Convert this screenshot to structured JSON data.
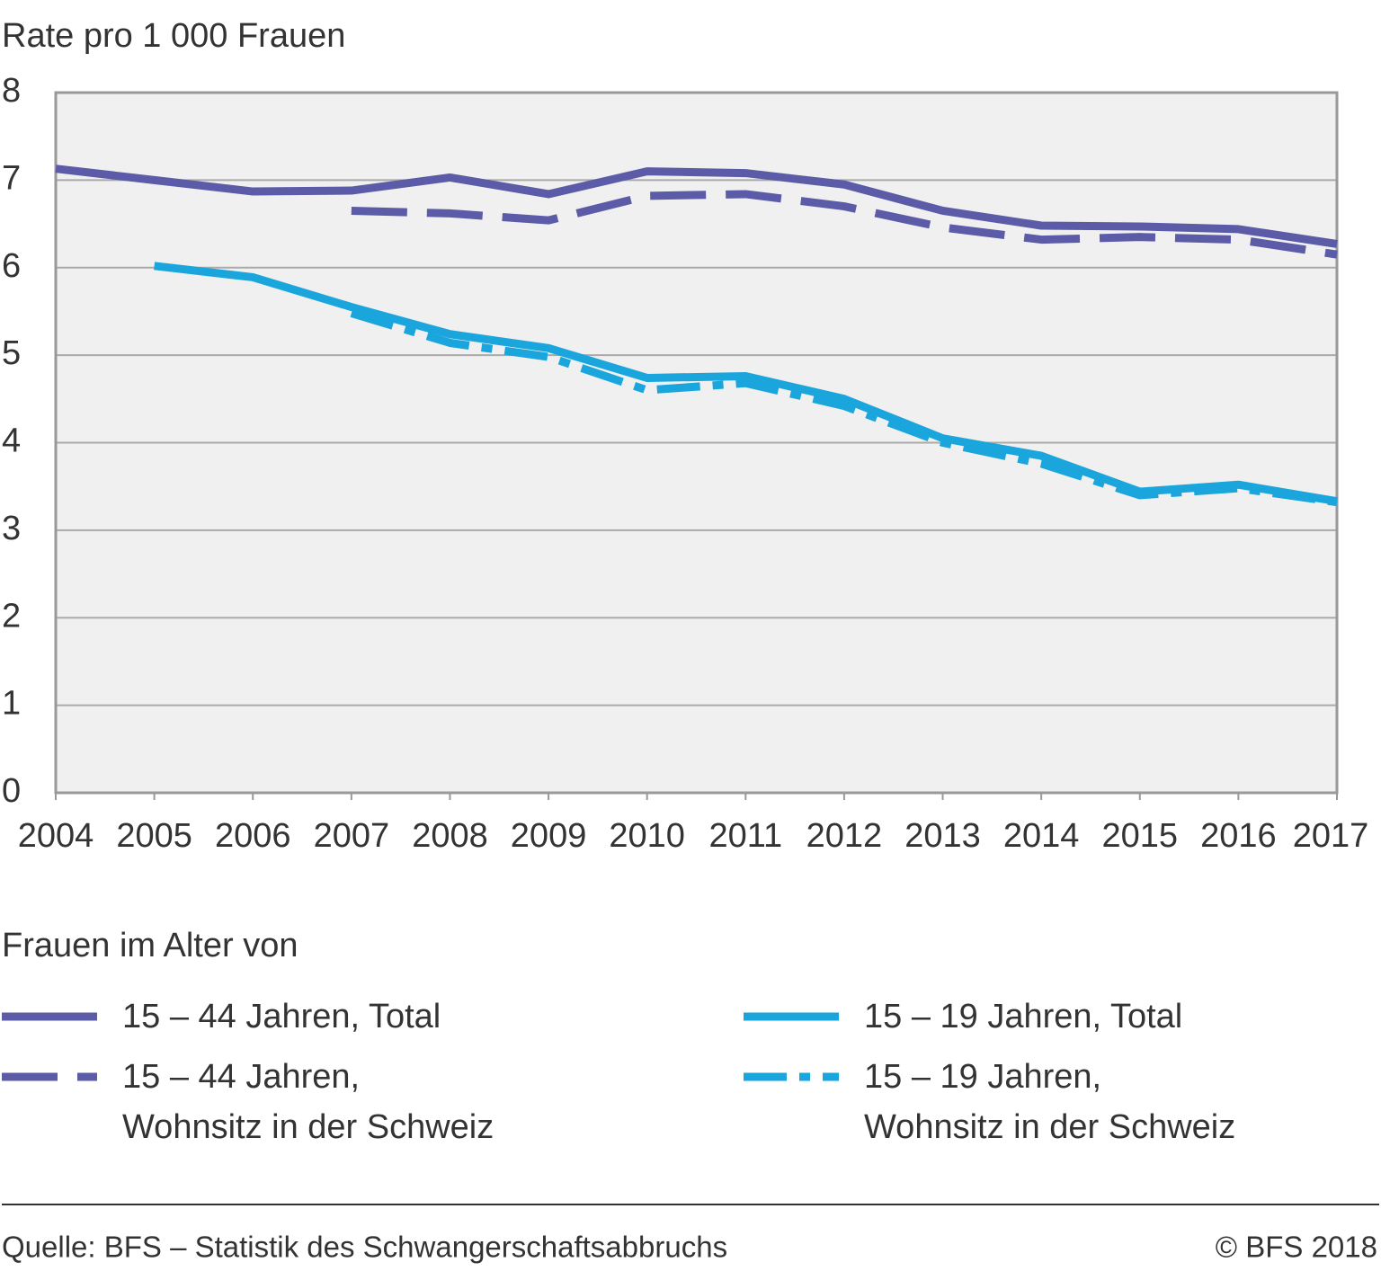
{
  "chart_data": {
    "type": "line",
    "title": "Rate pro 1 000 Frauen",
    "categories": [
      "2004",
      "2005",
      "2006",
      "2007",
      "2008",
      "2009",
      "2010",
      "2011",
      "2012",
      "2013",
      "2014",
      "2015",
      "2016",
      "2017"
    ],
    "series": [
      {
        "name": "15 – 44 Jahren, Total",
        "color": "#5b5ba8",
        "dash": "solid",
        "values": [
          7.13,
          7.0,
          6.87,
          6.88,
          7.03,
          6.84,
          7.1,
          7.08,
          6.95,
          6.65,
          6.48,
          6.47,
          6.44,
          6.27
        ]
      },
      {
        "name": "15 – 44 Jahren,\nWohnsitz in der Schweiz",
        "color": "#5b5ba8",
        "dash": "dashed",
        "values": [
          null,
          null,
          null,
          6.65,
          6.62,
          6.54,
          6.82,
          6.84,
          6.7,
          6.46,
          6.32,
          6.35,
          6.32,
          6.15
        ]
      },
      {
        "name": "15 – 19 Jahren, Total",
        "color": "#1aa6dc",
        "dash": "solid",
        "values": [
          null,
          6.02,
          5.89,
          5.55,
          5.24,
          5.08,
          4.74,
          4.76,
          4.5,
          4.05,
          3.85,
          3.44,
          3.52,
          3.33
        ]
      },
      {
        "name": "15 – 19 Jahren,\nWohnsitz in der Schweiz",
        "color": "#1aa6dc",
        "dash": "dashdot",
        "values": [
          null,
          null,
          null,
          5.48,
          5.14,
          4.98,
          4.6,
          4.68,
          4.42,
          4.0,
          3.76,
          3.4,
          3.48,
          3.32
        ]
      }
    ],
    "ylim": [
      0,
      8
    ],
    "yticks": [
      0,
      1,
      2,
      3,
      4,
      5,
      6,
      7,
      8
    ],
    "grid": true,
    "legend_title": "Frauen im Alter von",
    "source": "Quelle: BFS – Statistik des Schwangerschaftsabbruchs",
    "copyright": "© BFS 2018"
  }
}
